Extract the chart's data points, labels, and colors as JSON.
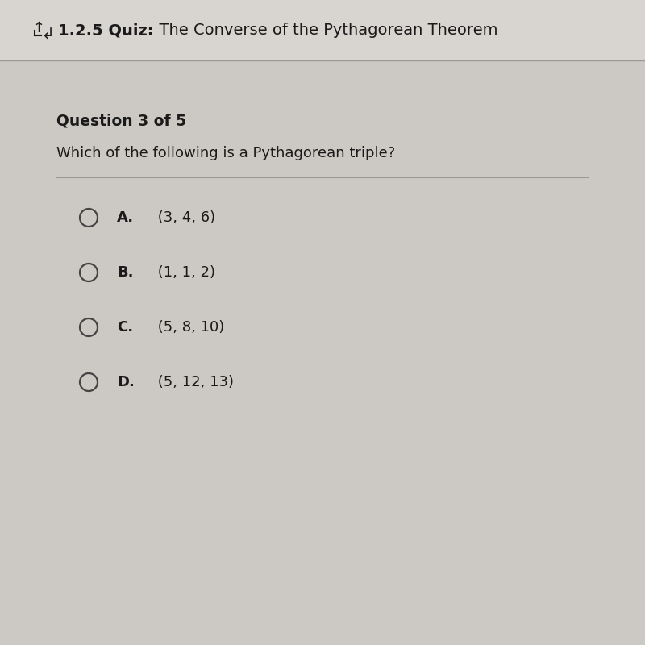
{
  "header_text_bold": "1.2.5 Quiz:",
  "header_text_normal": "  The Converse of the Pythagorean Theorem",
  "question_label": "Question 3 of 5",
  "question_text": "Which of the following is a Pythagorean triple?",
  "options": [
    {
      "letter": "A.",
      "text": " (3, 4, 6)"
    },
    {
      "letter": "B.",
      "text": " (1, 1, 2)"
    },
    {
      "letter": "C.",
      "text": " (5, 8, 10)"
    },
    {
      "letter": "D.",
      "text": " (5, 12, 13)"
    }
  ],
  "bg_color": "#ccc9c4",
  "header_bg": "#d8d4cf",
  "content_bg": "#cbc8c3",
  "header_line_color": "#999999",
  "divider_color": "#999999",
  "text_color": "#1a1a1a",
  "circle_edge_color": "#444444",
  "header_fontsize": 14,
  "question_label_fontsize": 13.5,
  "question_text_fontsize": 13,
  "option_fontsize": 13,
  "fig_width": 8.0,
  "fig_height": 8.0,
  "dpi": 100
}
